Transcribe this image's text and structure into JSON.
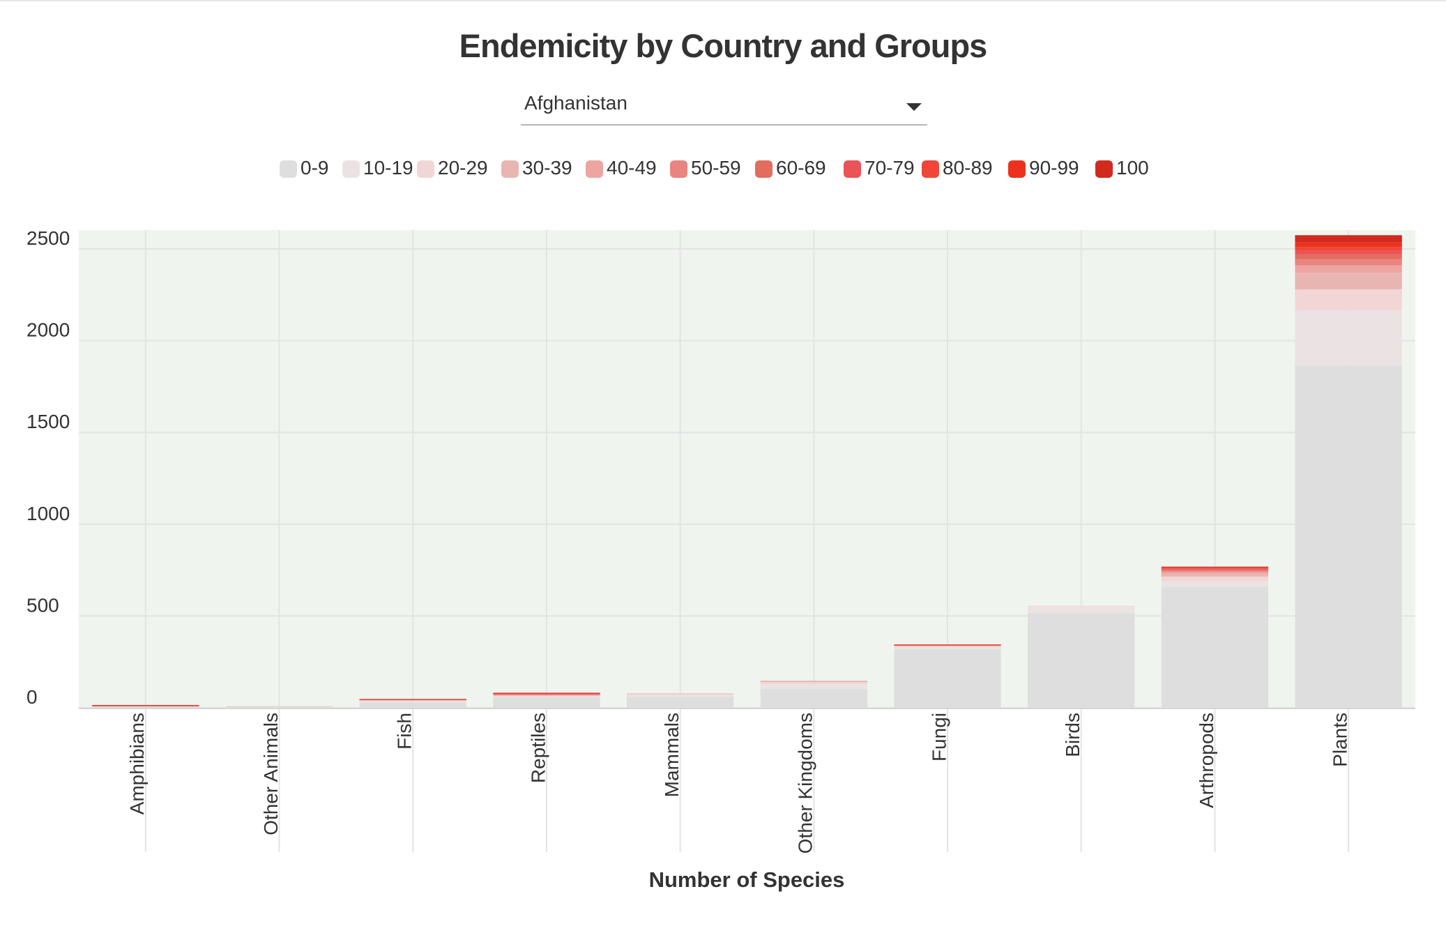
{
  "title": "Endemicity by Country and Groups",
  "country_select": {
    "value": "Afghanistan"
  },
  "legend": [
    {
      "label": "0-9",
      "color": "#dedede"
    },
    {
      "label": "10-19",
      "color": "#ebe3e3"
    },
    {
      "label": "20-29",
      "color": "#f2d6d6"
    },
    {
      "label": "30-39",
      "color": "#e8b5b3"
    },
    {
      "label": "40-49",
      "color": "#eda5a2"
    },
    {
      "label": "50-59",
      "color": "#e98481"
    },
    {
      "label": "60-69",
      "color": "#e26d5e"
    },
    {
      "label": "70-79",
      "color": "#ea5358"
    },
    {
      "label": "80-89",
      "color": "#f0463a"
    },
    {
      "label": "90-99",
      "color": "#ec321e"
    },
    {
      "label": "100",
      "color": "#d12a1f"
    }
  ],
  "colors": {
    "plot_background": "#eff5ee",
    "gridline": "#e3e3e3"
  },
  "chart_data": {
    "type": "bar",
    "stacked": true,
    "title": "Endemicity by Country and Groups",
    "xlabel": "Number of Species",
    "ylabel": "",
    "ylim": [
      0,
      2600
    ],
    "yticks": [
      0,
      500,
      1000,
      1500,
      2000,
      2500
    ],
    "categories": [
      "Amphibians",
      "Other Animals",
      "Fish",
      "Reptiles",
      "Mammals",
      "Other Kingdoms",
      "Fungi",
      "Birds",
      "Arthropods",
      "Plants"
    ],
    "series": [
      {
        "name": "0-9",
        "values": [
          5,
          8,
          30,
          55,
          60,
          103,
          320,
          515,
          660,
          1865
        ]
      },
      {
        "name": "10-19",
        "values": [
          1,
          2,
          5,
          6,
          10,
          25,
          10,
          35,
          30,
          300
        ]
      },
      {
        "name": "20-29",
        "values": [
          1,
          1,
          4,
          4,
          5,
          12,
          5,
          5,
          25,
          115
        ]
      },
      {
        "name": "30-39",
        "values": [
          1,
          0,
          2,
          3,
          2,
          3,
          2,
          0,
          15,
          90
        ]
      },
      {
        "name": "40-49",
        "values": [
          1,
          0,
          1,
          2,
          1,
          2,
          2,
          0,
          10,
          40
        ]
      },
      {
        "name": "50-59",
        "values": [
          1,
          0,
          1,
          2,
          0,
          1,
          1,
          0,
          8,
          35
        ]
      },
      {
        "name": "60-69",
        "values": [
          1,
          0,
          1,
          2,
          0,
          0,
          1,
          0,
          5,
          25
        ]
      },
      {
        "name": "70-79",
        "values": [
          1,
          0,
          1,
          2,
          0,
          0,
          1,
          0,
          4,
          20
        ]
      },
      {
        "name": "80-89",
        "values": [
          1,
          0,
          1,
          2,
          0,
          0,
          1,
          0,
          4,
          20
        ]
      },
      {
        "name": "90-99",
        "values": [
          1,
          0,
          1,
          2,
          0,
          0,
          1,
          0,
          4,
          25
        ]
      },
      {
        "name": "100",
        "values": [
          1,
          0,
          1,
          2,
          0,
          0,
          1,
          0,
          4,
          40
        ]
      }
    ],
    "grid": true,
    "legend_position": "top"
  }
}
